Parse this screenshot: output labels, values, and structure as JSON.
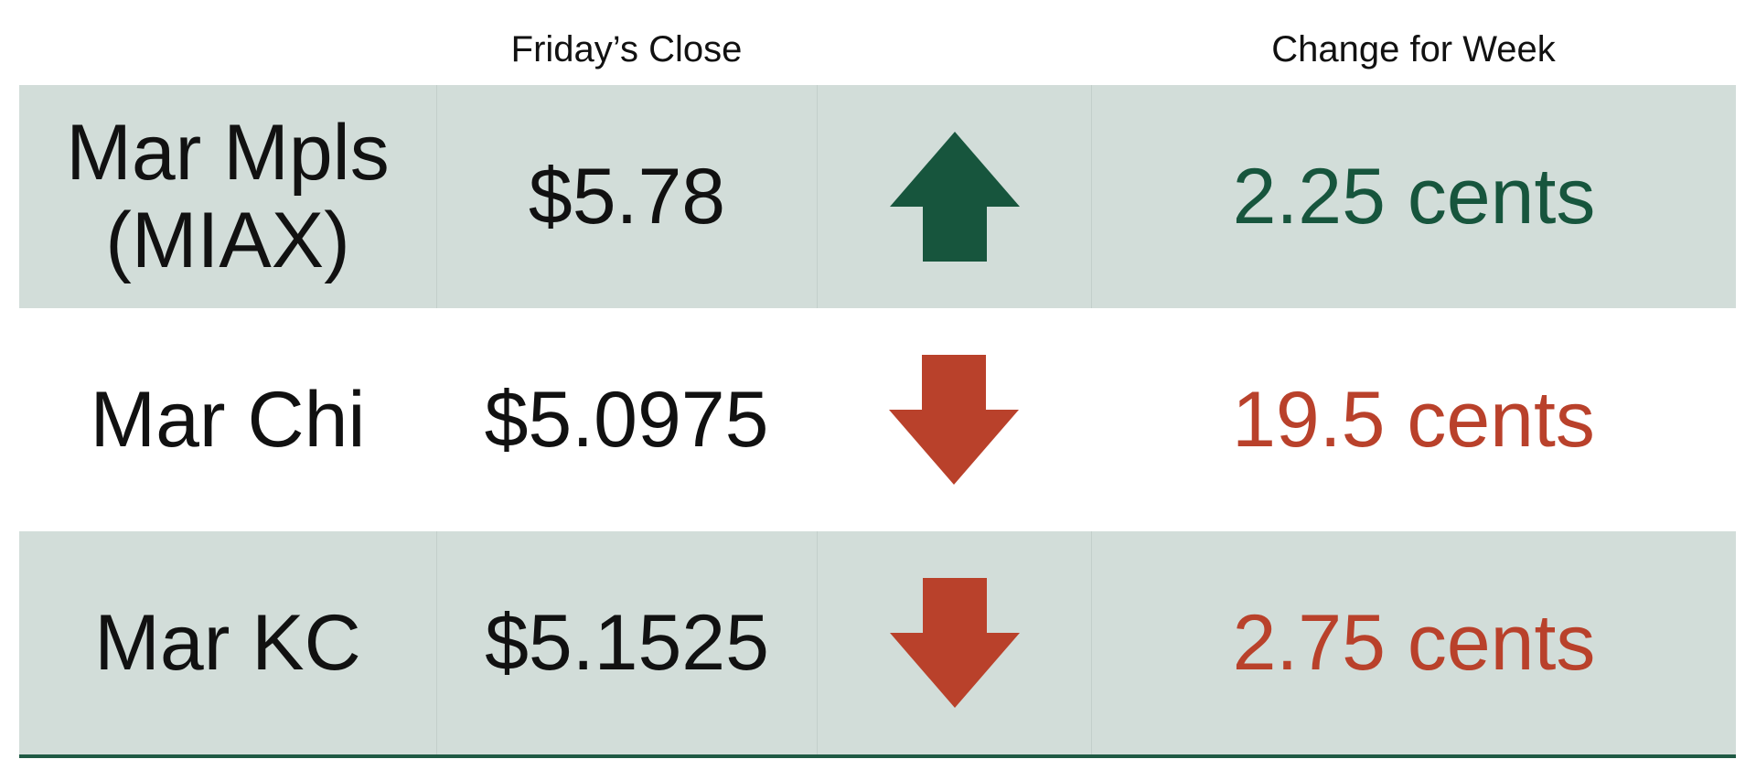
{
  "header": {
    "close_label": "Friday’s Close",
    "change_label": "Change for Week"
  },
  "colors": {
    "up": "#17553d",
    "down": "#b9412b",
    "shade": "#d2ddd9"
  },
  "rows": [
    {
      "name_line1": "Mar Mpls",
      "name_line2": "(MIAX)",
      "close": "$5.78",
      "direction": "up",
      "direction_icon": "arrow-up-icon",
      "change": "2.25 cents"
    },
    {
      "name_line1": "Mar Chi",
      "name_line2": "",
      "close": "$5.0975",
      "direction": "down",
      "direction_icon": "arrow-down-icon",
      "change": "19.5 cents"
    },
    {
      "name_line1": "Mar KC",
      "name_line2": "",
      "close": "$5.1525",
      "direction": "down",
      "direction_icon": "arrow-down-icon",
      "change": "2.75 cents"
    }
  ]
}
